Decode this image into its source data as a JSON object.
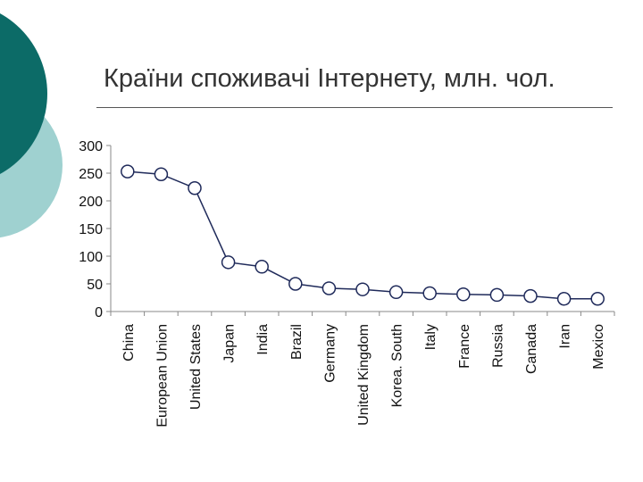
{
  "slide": {
    "title": "Країни споживачі Інтернету, млн. чол.",
    "colors": {
      "accent_dark": "#0c6b67",
      "accent_light": "#9fd1d0",
      "line": "#1f2a5a"
    }
  },
  "chart_data": {
    "type": "line",
    "title": "",
    "xlabel": "",
    "ylabel": "",
    "ylim": [
      0,
      300
    ],
    "yticks": [
      "0",
      "50",
      "100",
      "150",
      "200",
      "250",
      "300"
    ],
    "grid": false,
    "categories": [
      "China",
      "European Union",
      "United States",
      "Japan",
      "India",
      "Brazil",
      "Germany",
      "United Kingdom",
      "Korea. South",
      "Italy",
      "France",
      "Russia",
      "Canada",
      "Iran",
      "Mexico"
    ],
    "series": [
      {
        "values": [
          253,
          248,
          223,
          89,
          81,
          50,
          42,
          40,
          35,
          33,
          31,
          30,
          28,
          23,
          23
        ]
      }
    ]
  }
}
